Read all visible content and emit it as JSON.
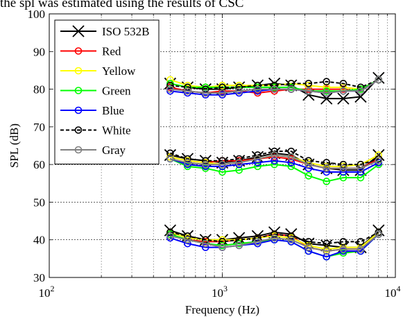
{
  "caption": "the spl was estimated using the results of CSC",
  "chart_data": {
    "type": "line",
    "title": "",
    "xlabel": "Frequency (Hz)",
    "ylabel": "SPL (dB)",
    "xscale": "log",
    "xlim": [
      100,
      10000
    ],
    "ylim": [
      30,
      100
    ],
    "yticks": [
      30,
      40,
      50,
      60,
      70,
      80,
      90,
      100
    ],
    "xtick_labels": [
      {
        "base": "10",
        "exp": "2"
      },
      {
        "base": "10",
        "exp": "3"
      },
      {
        "base": "10",
        "exp": "4"
      }
    ],
    "grid": true,
    "legend_position": "top-left",
    "x": [
      500,
      630,
      800,
      1000,
      1250,
      1600,
      2000,
      2500,
      3150,
      4000,
      5000,
      6300,
      8000
    ],
    "series": [
      {
        "name": "ISO 532B",
        "color": "#000000",
        "marker": "x",
        "dashed": false,
        "levels": [
          [
            42.5,
            41,
            40,
            40,
            40.5,
            41,
            42,
            41.5,
            39,
            38.5,
            38,
            38,
            42.5
          ],
          [
            62.5,
            61.5,
            61,
            60.5,
            61,
            62,
            63,
            62.5,
            60,
            59,
            58.5,
            58.5,
            62.5
          ],
          [
            81.5,
            80.5,
            80,
            80,
            80.5,
            81,
            81.5,
            81,
            78.5,
            77.5,
            77.5,
            78,
            83
          ]
        ]
      },
      {
        "name": "Red",
        "color": "#ff0000",
        "marker": "o",
        "dashed": false,
        "levels": [
          [
            41.5,
            40,
            39.5,
            39.5,
            40,
            40.5,
            41.5,
            41,
            38,
            37,
            37.5,
            37.5,
            41.5
          ],
          [
            62,
            61,
            60.5,
            61,
            61,
            61.5,
            62,
            61.5,
            60,
            59,
            59,
            59,
            61.5
          ],
          [
            80.5,
            79.5,
            79,
            79.5,
            79.5,
            79,
            79.5,
            80,
            80,
            80,
            80,
            79.5,
            82.5
          ]
        ]
      },
      {
        "name": "Yellow",
        "color": "#ffff00",
        "marker": "o",
        "dashed": false,
        "levels": [
          [
            42,
            40.5,
            40,
            40,
            40,
            40.5,
            41,
            40.5,
            38.5,
            37.5,
            38,
            38,
            42
          ],
          [
            62,
            61,
            60.5,
            60,
            60.5,
            61.5,
            62.5,
            62,
            60.5,
            59.5,
            59.5,
            60,
            62.5
          ],
          [
            82.5,
            81,
            80.5,
            81,
            81,
            81,
            81,
            81.5,
            81,
            80.5,
            80.5,
            80,
            82.5
          ]
        ]
      },
      {
        "name": "Green",
        "color": "#00ff00",
        "marker": "o",
        "dashed": false,
        "levels": [
          [
            41.5,
            40,
            39,
            38.5,
            39,
            39.5,
            40,
            39.5,
            37,
            35.5,
            36.5,
            37,
            41.5
          ],
          [
            61.5,
            59.5,
            59,
            58,
            58.5,
            59.5,
            60,
            59.5,
            57,
            55.5,
            56.5,
            56.5,
            60
          ],
          [
            81.5,
            80.5,
            80.5,
            80.5,
            80.5,
            80.5,
            80.5,
            80.5,
            79.5,
            79.5,
            79.5,
            80,
            82.5
          ]
        ]
      },
      {
        "name": "Blue",
        "color": "#0000ff",
        "marker": "o",
        "dashed": false,
        "levels": [
          [
            40.5,
            39,
            38,
            38,
            38.5,
            39,
            40,
            39.5,
            37,
            35.5,
            37,
            37,
            41.5
          ],
          [
            61.5,
            60,
            59.5,
            59.5,
            60,
            60.5,
            61,
            60.5,
            59,
            58,
            58,
            58,
            60.5
          ],
          [
            79.5,
            79,
            78.5,
            78.5,
            79,
            79.5,
            80,
            80,
            79.5,
            79,
            79.5,
            79.5,
            82.5
          ]
        ]
      },
      {
        "name": "White",
        "color": "#000000",
        "marker": "o",
        "dashed": true,
        "levels": [
          [
            42,
            41,
            40,
            39.5,
            40,
            40.5,
            41.5,
            41,
            39.5,
            39,
            39.5,
            39.5,
            42
          ],
          [
            63,
            61.5,
            61,
            61,
            61.5,
            62.5,
            63.5,
            63.5,
            61,
            60.5,
            60,
            60,
            61.5
          ],
          [
            81,
            80.5,
            80,
            80.5,
            80.5,
            81,
            81,
            81.5,
            81.5,
            82,
            81.5,
            80.5,
            82.5
          ]
        ]
      },
      {
        "name": "Gray",
        "color": "#808080",
        "marker": "o",
        "dashed": false,
        "levels": [
          [
            41,
            40,
            39,
            38,
            38.5,
            39.5,
            40.5,
            40,
            38,
            37,
            37.5,
            37.5,
            41.5
          ],
          [
            61.5,
            60.5,
            60,
            60,
            60.5,
            61.5,
            62.5,
            62,
            60,
            59,
            59,
            59,
            61
          ],
          [
            80,
            79.5,
            79,
            79,
            79.5,
            80,
            80,
            80,
            79.5,
            79,
            79.5,
            79.5,
            82.5
          ]
        ]
      }
    ]
  }
}
